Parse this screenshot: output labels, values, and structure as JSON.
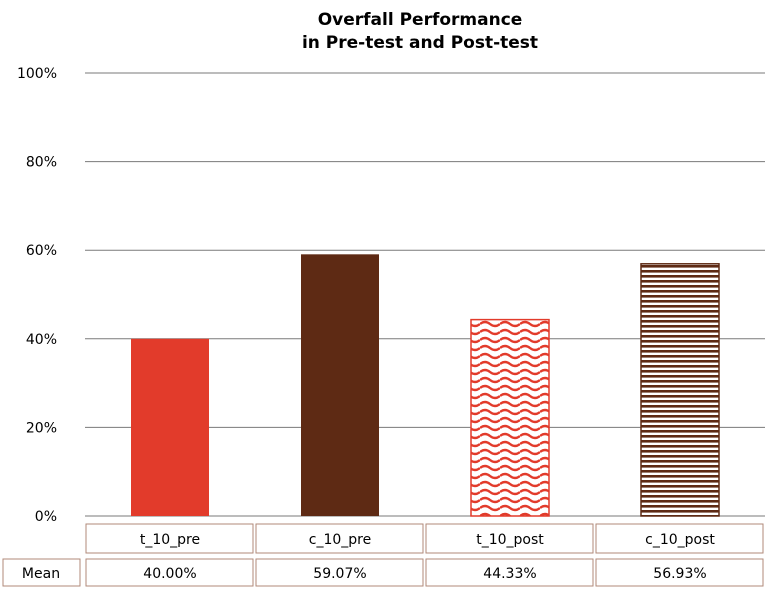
{
  "chart_data": {
    "type": "bar",
    "title_lines": [
      "Overfall Performance",
      "in Pre-test and Post-test"
    ],
    "categories": [
      "t_10_pre",
      "c_10_pre",
      "t_10_post",
      "c_10_post"
    ],
    "series": [
      {
        "name": "Mean",
        "values": [
          40.0,
          59.07,
          44.33,
          56.93
        ]
      }
    ],
    "data_labels": [
      "40.00%",
      "59.07%",
      "44.33%",
      "56.93%"
    ],
    "yticks": [
      "0%",
      "20%",
      "40%",
      "60%",
      "80%",
      "100%"
    ],
    "ylim": [
      0,
      100
    ],
    "grid": true,
    "data_table": true,
    "bar_styles": [
      {
        "fill": "solid",
        "color": "#e23b2b"
      },
      {
        "fill": "solid",
        "color": "#5e2a14"
      },
      {
        "fill": "wave",
        "color": "#e23b2b"
      },
      {
        "fill": "horizontal-lines",
        "color": "#5e2a14"
      }
    ],
    "colors": {
      "grid": "#7a7a7a",
      "table_border": "#b08a7a",
      "text": "#111111"
    }
  }
}
